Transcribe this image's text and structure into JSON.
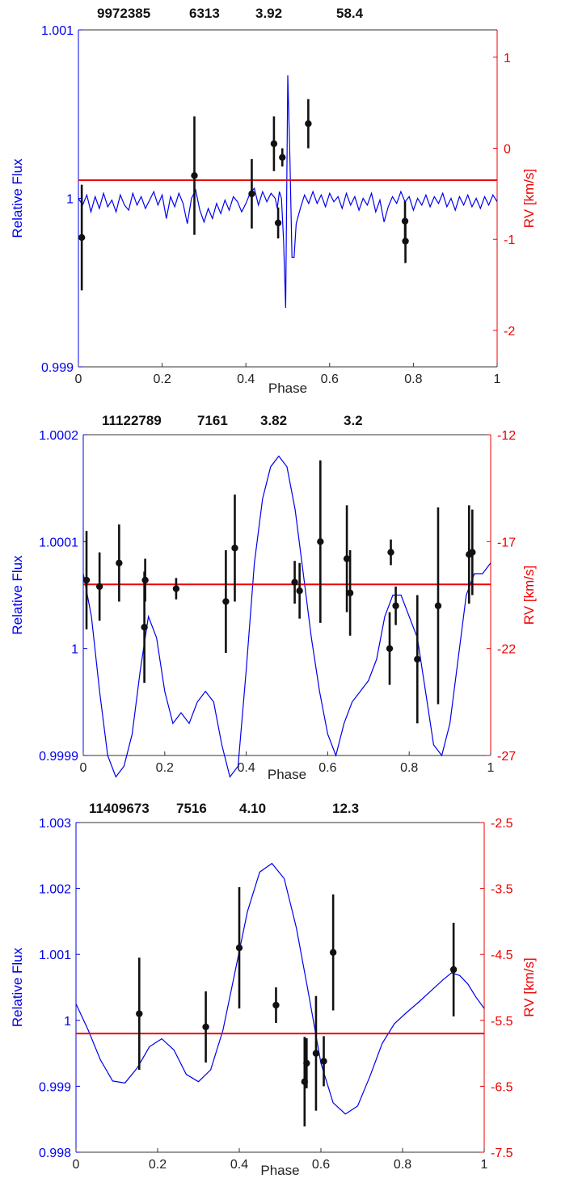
{
  "colors": {
    "flux": "#0000EE",
    "rv": "#EE0000",
    "points": "#111111",
    "axis": "#333333"
  },
  "chart_data": [
    {
      "type": "line",
      "header": [
        "9972385",
        "6313",
        "3.92",
        "58.4"
      ],
      "xlabel": "Phase",
      "ylabel_left": "Relative Flux",
      "ylabel_right": "RV [km/s]",
      "xlim": [
        0,
        1
      ],
      "xticks": [
        "0",
        "0.2",
        "0.4",
        "0.6",
        "0.8",
        "1"
      ],
      "ylim_left": [
        0.999,
        1.001
      ],
      "yticks_left": [
        "0.999",
        "1",
        "1.001"
      ],
      "ylim_right": [
        -2.4,
        1.3
      ],
      "yticks_right": [
        "-2",
        "-1",
        "0",
        "1"
      ],
      "rv_fit": -0.35,
      "flux_curve": [
        [
          0.0,
          1.0
        ],
        [
          0.01,
          0.99996
        ],
        [
          0.02,
          1.00002
        ],
        [
          0.03,
          0.99992
        ],
        [
          0.04,
          1.00001
        ],
        [
          0.05,
          0.99994
        ],
        [
          0.06,
          1.00003
        ],
        [
          0.07,
          0.99995
        ],
        [
          0.08,
          0.99999
        ],
        [
          0.09,
          0.99992
        ],
        [
          0.1,
          1.00002
        ],
        [
          0.11,
          0.99996
        ],
        [
          0.12,
          0.99993
        ],
        [
          0.13,
          1.00003
        ],
        [
          0.14,
          0.99996
        ],
        [
          0.15,
          1.00001
        ],
        [
          0.16,
          0.99994
        ],
        [
          0.17,
          0.99999
        ],
        [
          0.18,
          1.00004
        ],
        [
          0.19,
          0.99996
        ],
        [
          0.2,
          1.00002
        ],
        [
          0.21,
          0.99988
        ],
        [
          0.22,
          1.00001
        ],
        [
          0.23,
          0.99995
        ],
        [
          0.24,
          1.00003
        ],
        [
          0.25,
          0.99997
        ],
        [
          0.26,
          0.99985
        ],
        [
          0.27,
          1.0
        ],
        [
          0.28,
          1.00005
        ],
        [
          0.29,
          0.99993
        ],
        [
          0.3,
          0.99986
        ],
        [
          0.31,
          0.99994
        ],
        [
          0.32,
          0.99988
        ],
        [
          0.33,
          0.99997
        ],
        [
          0.34,
          0.99991
        ],
        [
          0.35,
          0.99999
        ],
        [
          0.36,
          0.99993
        ],
        [
          0.37,
          1.00001
        ],
        [
          0.38,
          0.99998
        ],
        [
          0.39,
          0.99992
        ],
        [
          0.4,
          0.99997
        ],
        [
          0.41,
          1.00003
        ],
        [
          0.42,
          1.00006
        ],
        [
          0.43,
          0.99996
        ],
        [
          0.44,
          1.00004
        ],
        [
          0.45,
          0.99998
        ],
        [
          0.46,
          1.00003
        ],
        [
          0.47,
          1.0
        ],
        [
          0.475,
          0.99994
        ],
        [
          0.48,
          1.00004
        ],
        [
          0.485,
          1.0
        ],
        [
          0.49,
          0.99975
        ],
        [
          0.495,
          0.99935
        ],
        [
          0.5,
          1.00073
        ],
        [
          0.505,
          1.00025
        ],
        [
          0.51,
          0.99965
        ],
        [
          0.515,
          0.99965
        ],
        [
          0.52,
          0.99985
        ],
        [
          0.53,
          0.99994
        ],
        [
          0.54,
          1.00002
        ],
        [
          0.55,
          0.99997
        ],
        [
          0.56,
          1.00004
        ],
        [
          0.57,
          0.99997
        ],
        [
          0.58,
          1.00002
        ],
        [
          0.59,
          0.99995
        ],
        [
          0.6,
          1.00003
        ],
        [
          0.61,
          0.99998
        ],
        [
          0.62,
          1.00001
        ],
        [
          0.63,
          0.99994
        ],
        [
          0.64,
          1.00003
        ],
        [
          0.65,
          0.99996
        ],
        [
          0.66,
          1.00001
        ],
        [
          0.67,
          0.99993
        ],
        [
          0.68,
          1.0
        ],
        [
          0.69,
          0.99996
        ],
        [
          0.7,
          1.00003
        ],
        [
          0.71,
          0.99992
        ],
        [
          0.72,
          0.99999
        ],
        [
          0.73,
          0.99986
        ],
        [
          0.74,
          0.99995
        ],
        [
          0.75,
          1.00001
        ],
        [
          0.76,
          0.99997
        ],
        [
          0.77,
          1.00004
        ],
        [
          0.78,
          0.99998
        ],
        [
          0.79,
          1.00001
        ],
        [
          0.8,
          0.99993
        ],
        [
          0.81,
          1.0
        ],
        [
          0.82,
          0.99996
        ],
        [
          0.83,
          1.00002
        ],
        [
          0.84,
          0.99995
        ],
        [
          0.85,
          1.00001
        ],
        [
          0.86,
          0.99997
        ],
        [
          0.87,
          1.00003
        ],
        [
          0.88,
          0.99995
        ],
        [
          0.89,
          1.0
        ],
        [
          0.9,
          0.99993
        ],
        [
          0.91,
          1.00001
        ],
        [
          0.92,
          0.99996
        ],
        [
          0.93,
          1.00002
        ],
        [
          0.94,
          0.99995
        ],
        [
          0.95,
          1.0
        ],
        [
          0.96,
          0.99994
        ],
        [
          0.97,
          1.00001
        ],
        [
          0.98,
          0.99996
        ],
        [
          0.99,
          1.00002
        ],
        [
          1.0,
          0.99998
        ]
      ],
      "rv_points": [
        {
          "x": 0.008,
          "y": -0.98,
          "err": 0.58
        },
        {
          "x": 0.277,
          "y": -0.3,
          "err": 0.65
        },
        {
          "x": 0.414,
          "y": -0.5,
          "err": 0.38
        },
        {
          "x": 0.467,
          "y": 0.05,
          "err": 0.3
        },
        {
          "x": 0.477,
          "y": -0.82,
          "err": 0.17
        },
        {
          "x": 0.487,
          "y": -0.1,
          "err": 0.1
        },
        {
          "x": 0.549,
          "y": 0.27,
          "err": 0.27
        },
        {
          "x": 0.78,
          "y": -0.8,
          "err": 0.22
        },
        {
          "x": 0.781,
          "y": -1.02,
          "err": 0.24
        }
      ]
    },
    {
      "type": "line",
      "header": [
        "11122789",
        "7161",
        "3.82",
        "3.2"
      ],
      "xlabel": "Phase",
      "ylabel_left": "Relative Flux",
      "ylabel_right": "RV [km/s]",
      "xlim": [
        0,
        1
      ],
      "xticks": [
        "0",
        "0.2",
        "0.4",
        "0.6",
        "0.8",
        "1"
      ],
      "ylim_left": [
        0.9999,
        1.0002
      ],
      "yticks_left": [
        "0.9999",
        "1",
        "1.0001",
        "1.0002"
      ],
      "ylim_right": [
        -27,
        -12
      ],
      "yticks_right": [
        "-27",
        "-22",
        "-17",
        "-12"
      ],
      "rv_fit": -19.0,
      "flux_curve": [
        [
          0.0,
          1.00007
        ],
        [
          0.02,
          1.00003
        ],
        [
          0.04,
          0.99996
        ],
        [
          0.06,
          0.9999
        ],
        [
          0.08,
          0.99988
        ],
        [
          0.1,
          0.99989
        ],
        [
          0.12,
          0.99992
        ],
        [
          0.14,
          0.99998
        ],
        [
          0.16,
          1.00003
        ],
        [
          0.18,
          1.00001
        ],
        [
          0.2,
          0.99996
        ],
        [
          0.22,
          0.99993
        ],
        [
          0.24,
          0.99994
        ],
        [
          0.26,
          0.99993
        ],
        [
          0.28,
          0.99995
        ],
        [
          0.3,
          0.99996
        ],
        [
          0.32,
          0.99995
        ],
        [
          0.34,
          0.99991
        ],
        [
          0.36,
          0.99988
        ],
        [
          0.38,
          0.99989
        ],
        [
          0.4,
          0.99998
        ],
        [
          0.42,
          1.00008
        ],
        [
          0.44,
          1.00014
        ],
        [
          0.46,
          1.00017
        ],
        [
          0.48,
          1.00018
        ],
        [
          0.5,
          1.00017
        ],
        [
          0.52,
          1.00013
        ],
        [
          0.54,
          1.00007
        ],
        [
          0.56,
          1.00001
        ],
        [
          0.58,
          0.99996
        ],
        [
          0.6,
          0.99992
        ],
        [
          0.62,
          0.9999
        ],
        [
          0.64,
          0.99993
        ],
        [
          0.66,
          0.99995
        ],
        [
          0.68,
          0.99996
        ],
        [
          0.7,
          0.99997
        ],
        [
          0.72,
          0.99999
        ],
        [
          0.74,
          1.00003
        ],
        [
          0.76,
          1.00005
        ],
        [
          0.78,
          1.00005
        ],
        [
          0.8,
          1.00003
        ],
        [
          0.82,
          1.00001
        ],
        [
          0.84,
          0.99996
        ],
        [
          0.86,
          0.99991
        ],
        [
          0.88,
          0.9999
        ],
        [
          0.9,
          0.99993
        ],
        [
          0.92,
          0.99999
        ],
        [
          0.94,
          1.00005
        ],
        [
          0.96,
          1.00007
        ],
        [
          0.98,
          1.00007
        ],
        [
          1.0,
          1.00008
        ]
      ],
      "rv_points": [
        {
          "x": 0.008,
          "y": -18.8,
          "err": 2.3
        },
        {
          "x": 0.04,
          "y": -19.1,
          "err": 1.6
        },
        {
          "x": 0.088,
          "y": -18.0,
          "err": 1.8
        },
        {
          "x": 0.15,
          "y": -21.0,
          "err": 2.6
        },
        {
          "x": 0.152,
          "y": -18.8,
          "err": 1.0
        },
        {
          "x": 0.228,
          "y": -19.2,
          "err": 0.5
        },
        {
          "x": 0.35,
          "y": -19.8,
          "err": 2.4
        },
        {
          "x": 0.372,
          "y": -17.3,
          "err": 2.5
        },
        {
          "x": 0.519,
          "y": -18.9,
          "err": 1.0
        },
        {
          "x": 0.531,
          "y": -19.3,
          "err": 1.3
        },
        {
          "x": 0.582,
          "y": -17.0,
          "err": 3.8
        },
        {
          "x": 0.647,
          "y": -17.8,
          "err": 2.5
        },
        {
          "x": 0.655,
          "y": -19.4,
          "err": 2.0
        },
        {
          "x": 0.752,
          "y": -22.0,
          "err": 1.7
        },
        {
          "x": 0.755,
          "y": -17.5,
          "err": 0.6
        },
        {
          "x": 0.767,
          "y": -20.0,
          "err": 0.9
        },
        {
          "x": 0.82,
          "y": -22.5,
          "err": 3.0
        },
        {
          "x": 0.871,
          "y": -20.0,
          "err": 4.6
        },
        {
          "x": 0.947,
          "y": -17.6,
          "err": 2.3
        },
        {
          "x": 0.955,
          "y": -17.5,
          "err": 2.0
        }
      ]
    },
    {
      "type": "line",
      "header": [
        "11409673",
        "7516",
        "4.10",
        "12.3"
      ],
      "xlabel": "Phase",
      "ylabel_left": "Relative Flux",
      "ylabel_right": "RV [km/s]",
      "xlim": [
        0,
        1
      ],
      "xticks": [
        "0",
        "0.2",
        "0.4",
        "0.6",
        "0.8",
        "1"
      ],
      "ylim_left": [
        0.998,
        1.003
      ],
      "yticks_left": [
        "0.998",
        "0.999",
        "1",
        "1.001",
        "1.002",
        "1.003"
      ],
      "ylim_right": [
        -7.5,
        -2.5
      ],
      "yticks_right": [
        "-7.5",
        "-6.5",
        "-5.5",
        "-4.5",
        "-3.5",
        "-2.5"
      ],
      "rv_fit": -5.7,
      "flux_curve": [
        [
          0.0,
          1.00025
        ],
        [
          0.03,
          0.99985
        ],
        [
          0.06,
          0.9994
        ],
        [
          0.09,
          0.99908
        ],
        [
          0.12,
          0.99905
        ],
        [
          0.15,
          0.99928
        ],
        [
          0.18,
          0.9996
        ],
        [
          0.21,
          0.99972
        ],
        [
          0.24,
          0.99955
        ],
        [
          0.27,
          0.99918
        ],
        [
          0.3,
          0.99907
        ],
        [
          0.33,
          0.99925
        ],
        [
          0.36,
          0.99985
        ],
        [
          0.39,
          1.00075
        ],
        [
          0.42,
          1.00165
        ],
        [
          0.45,
          1.00225
        ],
        [
          0.48,
          1.00238
        ],
        [
          0.51,
          1.00215
        ],
        [
          0.54,
          1.0014
        ],
        [
          0.57,
          1.0004
        ],
        [
          0.6,
          0.99935
        ],
        [
          0.63,
          0.99875
        ],
        [
          0.66,
          0.99858
        ],
        [
          0.69,
          0.9987
        ],
        [
          0.72,
          0.99915
        ],
        [
          0.75,
          0.99965
        ],
        [
          0.78,
          0.99995
        ],
        [
          0.81,
          1.00012
        ],
        [
          0.84,
          1.00028
        ],
        [
          0.87,
          1.00045
        ],
        [
          0.9,
          1.00062
        ],
        [
          0.92,
          1.00072
        ],
        [
          0.94,
          1.00068
        ],
        [
          0.96,
          1.00055
        ],
        [
          0.98,
          1.00035
        ],
        [
          1.0,
          1.00018
        ]
      ],
      "rv_points": [
        {
          "x": 0.155,
          "y": -5.4,
          "err": 0.85
        },
        {
          "x": 0.318,
          "y": -5.6,
          "err": 0.54
        },
        {
          "x": 0.4,
          "y": -4.4,
          "err": 0.92
        },
        {
          "x": 0.49,
          "y": -5.27,
          "err": 0.27
        },
        {
          "x": 0.56,
          "y": -6.43,
          "err": 0.68
        },
        {
          "x": 0.565,
          "y": -6.15,
          "err": 0.38
        },
        {
          "x": 0.588,
          "y": -6.0,
          "err": 0.87
        },
        {
          "x": 0.607,
          "y": -6.12,
          "err": 0.38
        },
        {
          "x": 0.63,
          "y": -4.47,
          "err": 0.88
        },
        {
          "x": 0.925,
          "y": -4.73,
          "err": 0.71
        }
      ]
    }
  ]
}
